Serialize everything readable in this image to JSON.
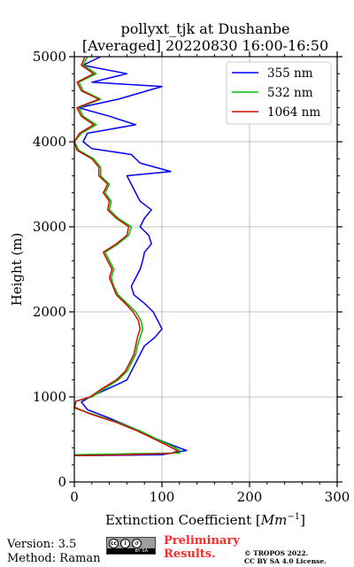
{
  "chart_data": {
    "type": "line",
    "title": "pollyxt_tjk at Dushanbe",
    "subtitle": "[Averaged] 20220830 16:00-16:50",
    "xlabel": "Extinction Coefficient [",
    "xlabel_unit": "Mm",
    "xlabel_exp": "−1",
    "xlabel_close": "]",
    "ylabel": "Height (m)",
    "xlim": [
      0,
      300
    ],
    "ylim": [
      0,
      5000
    ],
    "x_ticks": [
      0,
      100,
      200,
      300
    ],
    "y_ticks": [
      0,
      1000,
      2000,
      3000,
      4000,
      5000
    ],
    "grid": true,
    "legend_position": "top-right",
    "series": [
      {
        "name": "355 nm",
        "color": "#0000ff",
        "points": [
          [
            2,
            310
          ],
          [
            40,
            312
          ],
          [
            100,
            320
          ],
          [
            128,
            370
          ],
          [
            115,
            420
          ],
          [
            95,
            500
          ],
          [
            70,
            620
          ],
          [
            40,
            750
          ],
          [
            15,
            850
          ],
          [
            8,
            940
          ],
          [
            18,
            1000
          ],
          [
            35,
            1080
          ],
          [
            50,
            1150
          ],
          [
            60,
            1200
          ],
          [
            65,
            1300
          ],
          [
            70,
            1400
          ],
          [
            75,
            1500
          ],
          [
            80,
            1600
          ],
          [
            92,
            1700
          ],
          [
            100,
            1800
          ],
          [
            95,
            1900
          ],
          [
            90,
            2000
          ],
          [
            80,
            2100
          ],
          [
            68,
            2200
          ],
          [
            65,
            2300
          ],
          [
            70,
            2400
          ],
          [
            75,
            2500
          ],
          [
            78,
            2600
          ],
          [
            80,
            2700
          ],
          [
            88,
            2800
          ],
          [
            85,
            2900
          ],
          [
            75,
            3000
          ],
          [
            80,
            3100
          ],
          [
            88,
            3200
          ],
          [
            75,
            3300
          ],
          [
            70,
            3400
          ],
          [
            65,
            3500
          ],
          [
            60,
            3600
          ],
          [
            110,
            3650
          ],
          [
            75,
            3750
          ],
          [
            65,
            3850
          ],
          [
            20,
            3920
          ],
          [
            10,
            4000
          ],
          [
            15,
            4100
          ],
          [
            70,
            4200
          ],
          [
            40,
            4300
          ],
          [
            5,
            4400
          ],
          [
            50,
            4500
          ],
          [
            100,
            4650
          ],
          [
            20,
            4700
          ],
          [
            60,
            4800
          ],
          [
            10,
            4900
          ],
          [
            30,
            5000
          ]
        ]
      },
      {
        "name": "532 nm",
        "color": "#00bb00",
        "points": [
          [
            0,
            320
          ],
          [
            60,
            330
          ],
          [
            120,
            340
          ],
          [
            122,
            360
          ],
          [
            112,
            420
          ],
          [
            95,
            500
          ],
          [
            75,
            600
          ],
          [
            50,
            700
          ],
          [
            20,
            800
          ],
          [
            0,
            870
          ],
          [
            2,
            950
          ],
          [
            20,
            1000
          ],
          [
            35,
            1100
          ],
          [
            50,
            1200
          ],
          [
            60,
            1300
          ],
          [
            65,
            1400
          ],
          [
            70,
            1500
          ],
          [
            72,
            1600
          ],
          [
            75,
            1700
          ],
          [
            78,
            1800
          ],
          [
            76,
            1900
          ],
          [
            70,
            2000
          ],
          [
            60,
            2100
          ],
          [
            50,
            2200
          ],
          [
            45,
            2300
          ],
          [
            42,
            2400
          ],
          [
            45,
            2500
          ],
          [
            40,
            2600
          ],
          [
            35,
            2700
          ],
          [
            50,
            2800
          ],
          [
            62,
            2900
          ],
          [
            65,
            3000
          ],
          [
            50,
            3100
          ],
          [
            40,
            3200
          ],
          [
            42,
            3300
          ],
          [
            35,
            3400
          ],
          [
            40,
            3500
          ],
          [
            30,
            3600
          ],
          [
            30,
            3700
          ],
          [
            22,
            3800
          ],
          [
            5,
            3900
          ],
          [
            0,
            4000
          ],
          [
            8,
            4100
          ],
          [
            25,
            4200
          ],
          [
            10,
            4300
          ],
          [
            5,
            4400
          ],
          [
            30,
            4500
          ],
          [
            10,
            4600
          ],
          [
            5,
            4700
          ],
          [
            25,
            4800
          ],
          [
            10,
            4900
          ],
          [
            15,
            5000
          ]
        ]
      },
      {
        "name": "1064 nm",
        "color": "#cc1100",
        "points": [
          [
            0,
            310
          ],
          [
            40,
            315
          ],
          [
            110,
            335
          ],
          [
            118,
            365
          ],
          [
            108,
            420
          ],
          [
            92,
            500
          ],
          [
            72,
            600
          ],
          [
            48,
            700
          ],
          [
            18,
            800
          ],
          [
            0,
            880
          ],
          [
            2,
            950
          ],
          [
            18,
            1000
          ],
          [
            32,
            1100
          ],
          [
            48,
            1200
          ],
          [
            58,
            1300
          ],
          [
            63,
            1400
          ],
          [
            68,
            1500
          ],
          [
            70,
            1600
          ],
          [
            72,
            1700
          ],
          [
            75,
            1800
          ],
          [
            73,
            1900
          ],
          [
            67,
            2000
          ],
          [
            58,
            2100
          ],
          [
            48,
            2200
          ],
          [
            44,
            2300
          ],
          [
            40,
            2400
          ],
          [
            43,
            2500
          ],
          [
            38,
            2600
          ],
          [
            33,
            2700
          ],
          [
            48,
            2800
          ],
          [
            60,
            2900
          ],
          [
            62,
            3000
          ],
          [
            48,
            3100
          ],
          [
            38,
            3200
          ],
          [
            40,
            3300
          ],
          [
            33,
            3400
          ],
          [
            38,
            3500
          ],
          [
            28,
            3600
          ],
          [
            28,
            3700
          ],
          [
            20,
            3800
          ],
          [
            3,
            3900
          ],
          [
            0,
            4000
          ],
          [
            6,
            4100
          ],
          [
            22,
            4200
          ],
          [
            8,
            4300
          ],
          [
            3,
            4400
          ],
          [
            28,
            4500
          ],
          [
            8,
            4600
          ],
          [
            3,
            4700
          ],
          [
            22,
            4800
          ],
          [
            8,
            4900
          ],
          [
            12,
            5000
          ]
        ]
      }
    ]
  },
  "footer": {
    "version": "Version: 3.5",
    "method": "Method: Raman",
    "license_icon": "cc-by-sa-badge",
    "license_badge_text": "BY   SA",
    "prelim_line1": "Preliminary",
    "prelim_line2": "Results.",
    "prelim_color": "#ff2a2a",
    "copyright_line1": "© TROPOS 2022.",
    "copyright_line2": "CC BY SA 4.0 License."
  }
}
